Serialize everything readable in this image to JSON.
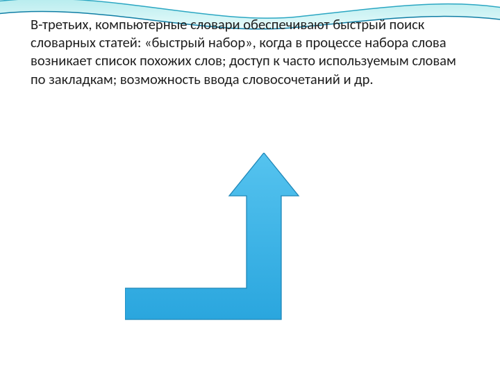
{
  "slide": {
    "paragraph": "В-третьих, компьютерные словари обеспечивают быстрый поиск\nсловарных статей: «быстрый набор», когда в процессе набора слова возникает список похожих слов; доступ к часто используемым словам по закладкам; возможность ввода словосочетаний и др.",
    "text_color": "#1e1e1e",
    "text_fontsize": 20.5,
    "background_color": "#ffffff"
  },
  "wave_decoration": {
    "top_stroke_color": "#2aa6c2",
    "fill_gradient_from": "#b7ecee",
    "fill_gradient_to": "#e8fbfb",
    "bottom_stroke_color": "#0f7ea5"
  },
  "arrow": {
    "type": "bent-up-arrow",
    "fill_gradient_from": "#55c3ef",
    "fill_gradient_to": "#2aa6de",
    "stroke_color": "#1f87b8",
    "stroke_width": 1.3
  }
}
